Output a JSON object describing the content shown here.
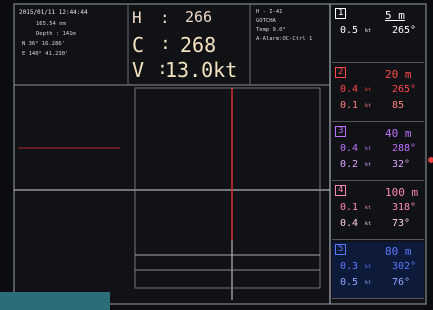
{
  "header": {
    "datetime": "2015/01/11 12:44:44",
    "lines": [
      "165.54 nm",
      "Depth : 141m",
      "N 36° 16.286'",
      "E 140° 41.230'"
    ]
  },
  "readout": [
    {
      "label": "H",
      "sep": ":",
      "value": "266"
    },
    {
      "label": "C",
      "sep": ":",
      "value": "268"
    },
    {
      "label": "V",
      "sep": ":",
      "value": "13.0kt"
    }
  ],
  "status": [
    "H - I-41",
    "GOTCHA",
    "Temp 9.0°",
    "A-Alarm:OC-Ctrl 1"
  ],
  "speed_unit": "kt",
  "layers": [
    {
      "index": "1",
      "depth": "5 m",
      "rows": [
        [
          "0.5",
          "265°"
        ]
      ]
    },
    {
      "index": "2",
      "depth": "20 m",
      "rows": [
        [
          "0.4",
          "265°"
        ],
        [
          "0.1",
          "85"
        ]
      ]
    },
    {
      "index": "3",
      "depth": "40 m",
      "rows": [
        [
          "0.4",
          "288°"
        ],
        [
          "0.2",
          "32°"
        ]
      ]
    },
    {
      "index": "4",
      "depth": "100 m",
      "rows": [
        [
          "0.1",
          "318°"
        ],
        [
          "0.4",
          "73°"
        ]
      ]
    },
    {
      "index": "5",
      "depth": "80 m",
      "rows": [
        [
          "0.3",
          "302°"
        ],
        [
          "0.5",
          "76°"
        ]
      ]
    }
  ]
}
